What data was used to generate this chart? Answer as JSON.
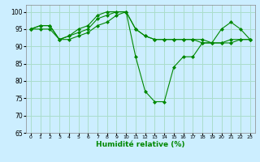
{
  "title": "",
  "xlabel": "Humidité relative (%)",
  "ylabel": "",
  "bg_color": "#cceeff",
  "grid_color": "#aaddcc",
  "line_color": "#008800",
  "marker": "D",
  "xlim": [
    -0.5,
    23.5
  ],
  "ylim": [
    65,
    102
  ],
  "yticks": [
    65,
    70,
    75,
    80,
    85,
    90,
    95,
    100
  ],
  "xticks": [
    0,
    1,
    2,
    3,
    4,
    5,
    6,
    7,
    8,
    9,
    10,
    11,
    12,
    13,
    14,
    15,
    16,
    17,
    18,
    19,
    20,
    21,
    22,
    23
  ],
  "series": [
    [
      95,
      96,
      96,
      92,
      93,
      94,
      95,
      98,
      99,
      100,
      100,
      87,
      77,
      74,
      74,
      84,
      87,
      87,
      91,
      91,
      95,
      97,
      95,
      92
    ],
    [
      95,
      96,
      96,
      92,
      93,
      95,
      96,
      99,
      100,
      100,
      100,
      95,
      93,
      92,
      92,
      92,
      92,
      92,
      92,
      91,
      91,
      92,
      92,
      92
    ],
    [
      95,
      95,
      95,
      92,
      92,
      93,
      94,
      96,
      97,
      99,
      100,
      95,
      93,
      92,
      92,
      92,
      92,
      92,
      91,
      91,
      91,
      91,
      92,
      92
    ]
  ]
}
